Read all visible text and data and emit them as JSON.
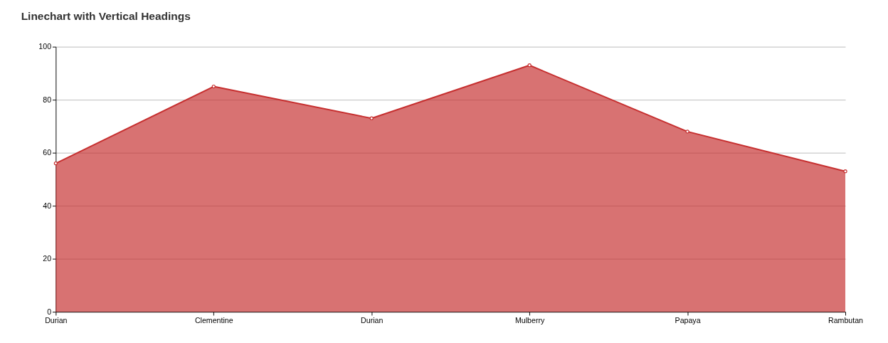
{
  "chart_data": {
    "type": "area",
    "title": "Linechart with Vertical Headings",
    "categories": [
      "Durian",
      "Clementine",
      "Durian",
      "Mulberry",
      "Papaya",
      "Rambutan"
    ],
    "series": [
      {
        "color": "#c62f2f",
        "values": [
          56,
          85,
          73,
          93,
          68,
          53
        ]
      }
    ],
    "ylim": [
      0,
      100
    ],
    "yticks": [
      0,
      20,
      40,
      60,
      80,
      100
    ],
    "grid": "y",
    "marker": "circle"
  }
}
